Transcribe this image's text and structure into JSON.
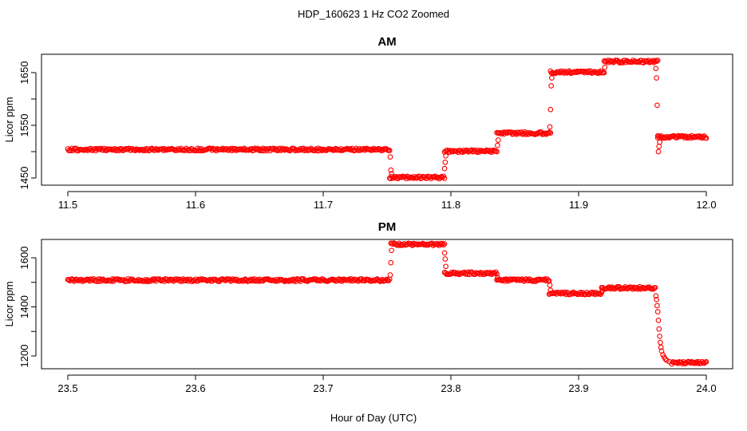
{
  "figure": {
    "title": "HDP_160623  1 Hz CO2 Zoomed",
    "xlabel": "Hour of Day (UTC)"
  },
  "colors": {
    "points": "#ff0000",
    "axes": "#000000",
    "background": "#ffffff"
  },
  "chart_data": [
    {
      "type": "scatter",
      "title": "AM",
      "xlabel": "",
      "ylabel": "Licor ppm",
      "xlim": [
        11.5,
        12.0
      ],
      "ylim": [
        1440,
        1690
      ],
      "x_ticks": [
        11.5,
        11.6,
        11.7,
        11.8,
        11.9,
        12.0
      ],
      "x_tick_labels": [
        "11.5",
        "11.6",
        "11.7",
        "11.8",
        "11.9",
        "12.0"
      ],
      "y_ticks": [
        1450,
        1500,
        1550,
        1600,
        1650
      ],
      "y_tick_labels": [
        "1450",
        "",
        "1550",
        "",
        "1650"
      ],
      "grid": false,
      "series": [
        {
          "marker": "open-circle",
          "color": "#ff0000",
          "segments": [
            {
              "x_start": 11.5,
              "x_end": 11.752,
              "y": 1504
            },
            {
              "x_start": 11.752,
              "x_end": 11.795,
              "y": 1451
            },
            {
              "x_start": 11.795,
              "x_end": 11.836,
              "y": 1501
            },
            {
              "x_start": 11.836,
              "x_end": 11.878,
              "y": 1535
            },
            {
              "x_start": 11.878,
              "x_end": 11.92,
              "y": 1651
            },
            {
              "x_start": 11.92,
              "x_end": 11.962,
              "y": 1671
            },
            {
              "x_start": 11.962,
              "x_end": 12.0,
              "y": 1528
            }
          ],
          "transitions": [
            {
              "x": 11.7525,
              "y": 1490
            },
            {
              "x": 11.753,
              "y": 1465
            },
            {
              "x": 11.7535,
              "y": 1458
            },
            {
              "x": 11.795,
              "y": 1468
            },
            {
              "x": 11.7955,
              "y": 1480
            },
            {
              "x": 11.796,
              "y": 1492
            },
            {
              "x": 11.8365,
              "y": 1512
            },
            {
              "x": 11.837,
              "y": 1522
            },
            {
              "x": 11.8775,
              "y": 1547
            },
            {
              "x": 11.878,
              "y": 1580
            },
            {
              "x": 11.8785,
              "y": 1625
            },
            {
              "x": 11.879,
              "y": 1640
            },
            {
              "x": 11.9205,
              "y": 1660
            },
            {
              "x": 11.9605,
              "y": 1658
            },
            {
              "x": 11.961,
              "y": 1640
            },
            {
              "x": 11.9615,
              "y": 1588
            },
            {
              "x": 11.962,
              "y": 1530
            },
            {
              "x": 11.9625,
              "y": 1500
            },
            {
              "x": 11.963,
              "y": 1510
            },
            {
              "x": 11.9635,
              "y": 1518
            }
          ]
        }
      ]
    },
    {
      "type": "scatter",
      "title": "PM",
      "xlabel": "Hour of Day (UTC)",
      "ylabel": "Licor ppm",
      "xlim": [
        23.5,
        24.0
      ],
      "ylim": [
        1150,
        1690
      ],
      "x_ticks": [
        23.5,
        23.6,
        23.7,
        23.8,
        23.9,
        24.0
      ],
      "x_tick_labels": [
        "23.5",
        "23.6",
        "23.7",
        "23.8",
        "23.9",
        "24.0"
      ],
      "y_ticks": [
        1200,
        1300,
        1400,
        1500,
        1600
      ],
      "y_tick_labels": [
        "1200",
        "",
        "1400",
        "",
        "1600"
      ],
      "grid": false,
      "series": [
        {
          "marker": "open-circle",
          "color": "#ff0000",
          "segments": [
            {
              "x_start": 23.5,
              "x_end": 23.752,
              "y": 1509
            },
            {
              "x_start": 23.753,
              "x_end": 23.795,
              "y": 1655
            },
            {
              "x_start": 23.795,
              "x_end": 23.836,
              "y": 1537
            },
            {
              "x_start": 23.836,
              "x_end": 23.877,
              "y": 1509
            },
            {
              "x_start": 23.877,
              "x_end": 23.918,
              "y": 1455
            },
            {
              "x_start": 23.918,
              "x_end": 23.96,
              "y": 1477
            },
            {
              "x_start": 23.973,
              "x_end": 24.0,
              "y": 1172
            }
          ],
          "transitions": [
            {
              "x": 23.7525,
              "y": 1530
            },
            {
              "x": 23.753,
              "y": 1580
            },
            {
              "x": 23.7535,
              "y": 1630
            },
            {
              "x": 23.795,
              "y": 1620
            },
            {
              "x": 23.7955,
              "y": 1595
            },
            {
              "x": 23.796,
              "y": 1565
            },
            {
              "x": 23.8365,
              "y": 1520
            },
            {
              "x": 23.8775,
              "y": 1488
            },
            {
              "x": 23.878,
              "y": 1468
            },
            {
              "x": 23.9185,
              "y": 1466
            },
            {
              "x": 23.9605,
              "y": 1445
            },
            {
              "x": 23.961,
              "y": 1430
            },
            {
              "x": 23.9615,
              "y": 1405
            },
            {
              "x": 23.962,
              "y": 1380
            },
            {
              "x": 23.9625,
              "y": 1345
            },
            {
              "x": 23.963,
              "y": 1310
            },
            {
              "x": 23.9635,
              "y": 1280
            },
            {
              "x": 23.964,
              "y": 1255
            },
            {
              "x": 23.9645,
              "y": 1235
            },
            {
              "x": 23.965,
              "y": 1220
            },
            {
              "x": 23.966,
              "y": 1205
            },
            {
              "x": 23.967,
              "y": 1195
            },
            {
              "x": 23.968,
              "y": 1188
            },
            {
              "x": 23.969,
              "y": 1182
            },
            {
              "x": 23.971,
              "y": 1177
            }
          ]
        }
      ]
    }
  ]
}
